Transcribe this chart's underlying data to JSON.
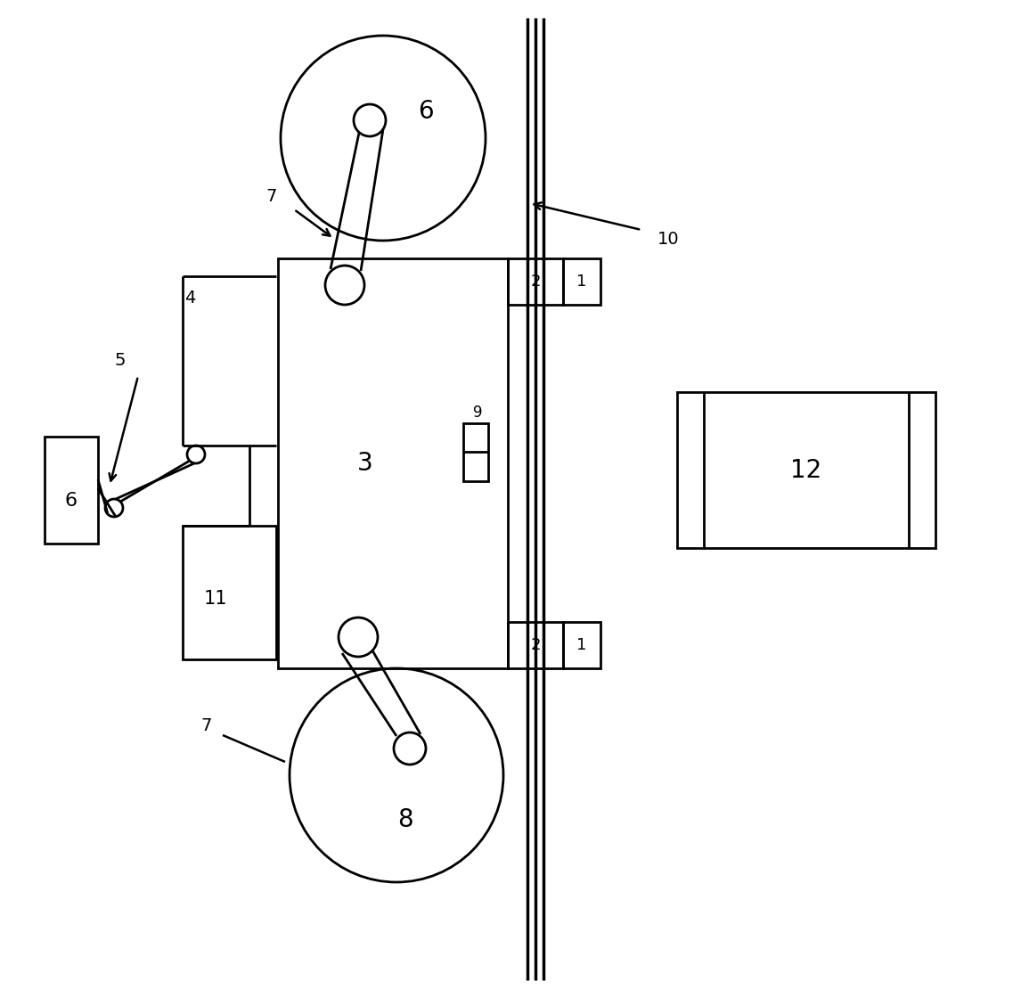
{
  "bg_color": "#ffffff",
  "line_color": "#000000",
  "lw": 2.0,
  "fig_width": 11.55,
  "fig_height": 11.2,
  "dpi": 100
}
